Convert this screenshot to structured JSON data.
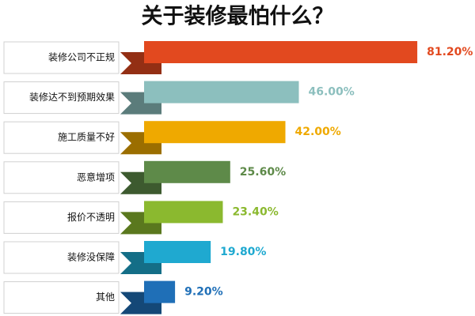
{
  "chart_data": {
    "type": "bar",
    "orientation": "horizontal",
    "title": "关于装修最怕什么？",
    "categories": [
      "装修公司不正规",
      "装修达不到预期效果",
      "施工质量不好",
      "恶意增项",
      "报价不透明",
      "装修没保障",
      "其他"
    ],
    "values": [
      81.2,
      46.0,
      42.0,
      25.6,
      23.4,
      19.8,
      9.2
    ],
    "value_labels": [
      "81.20%",
      "46.00%",
      "42.00%",
      "25.60%",
      "23.40%",
      "19.80%",
      "9.20%"
    ],
    "colors": [
      "#e2491f",
      "#8cbfbe",
      "#efa900",
      "#5e8a49",
      "#8bb92f",
      "#1fa9d0",
      "#1f6fb7"
    ]
  }
}
